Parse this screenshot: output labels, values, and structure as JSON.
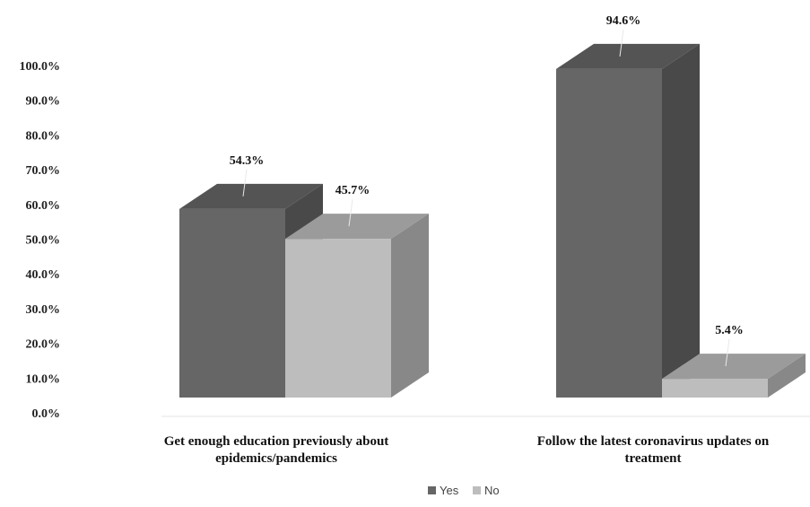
{
  "chart_data": {
    "type": "bar",
    "categories": [
      [
        "Get enough education previously about",
        "epidemics/pandemics"
      ],
      [
        "Follow the latest coronavirus updates on",
        "treatment"
      ]
    ],
    "series": [
      {
        "name": "Yes",
        "values": [
          54.3,
          94.6
        ],
        "labels": [
          "54.3%",
          "94.6%"
        ],
        "color": "#666666"
      },
      {
        "name": "No",
        "values": [
          45.7,
          5.4
        ],
        "labels": [
          "45.7%",
          "5.4%"
        ],
        "color": "#bdbdbd"
      }
    ],
    "yticks": [
      "0.0%",
      "10.0%",
      "20.0%",
      "30.0%",
      "40.0%",
      "50.0%",
      "60.0%",
      "70.0%",
      "80.0%",
      "90.0%",
      "100.0%"
    ],
    "ylim": [
      0,
      100
    ],
    "grid": false,
    "legend_position": "bottom",
    "style": "3d-column"
  }
}
